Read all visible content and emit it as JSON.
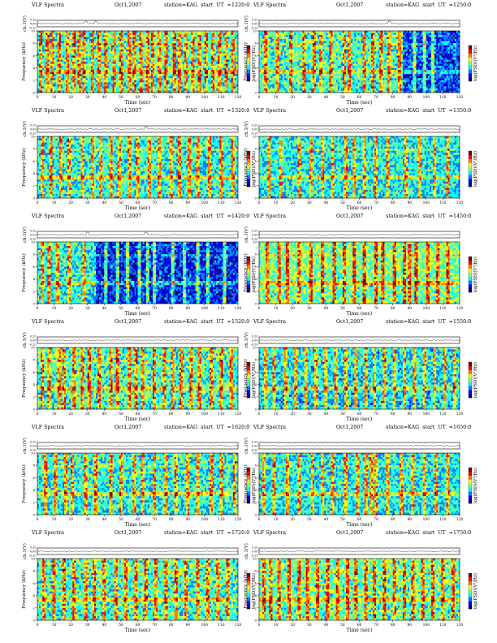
{
  "figure": {
    "panel_title_prefix": "VLF Spectra",
    "date": "Oct1,2007",
    "station": "station=KAG",
    "start_label": "start  UT  =",
    "ch_axis_label": "ch.1(V)",
    "spec_axis_label": "Frequency (kHz)",
    "colorbar_label": "log(PSD)(V²/Hz)",
    "x_axis_label": "Time (sec)",
    "ch_ticks": [
      "0.20",
      "0.00",
      "-0.20"
    ],
    "freq_ticks": [
      "0",
      "2",
      "4",
      "6",
      "8",
      "10"
    ],
    "time_ticks": [
      "0",
      "10",
      "20",
      "30",
      "40",
      "50",
      "60",
      "70",
      "80",
      "90",
      "100",
      "110",
      "120"
    ],
    "colors": {
      "colormap": [
        "#00007f",
        "#0000ff",
        "#0080ff",
        "#00ffff",
        "#80ff80",
        "#ffff00",
        "#ff8000",
        "#ff0000",
        "#7f0000"
      ]
    }
  },
  "chart_data": [
    {
      "type": "heatmap",
      "title": "VLF Spectra   Oct1,2007   station=KAG  start  UT  =1220:0",
      "start_ut": "1220:0",
      "x_unit": "sec",
      "xlim": [
        0,
        120
      ],
      "ylim_frequency_khz": [
        0,
        10
      ],
      "ch1_ylim_v": [
        -0.2,
        0.2
      ],
      "background_level": 0.45,
      "spikes_sec": [
        2,
        6,
        9,
        13,
        18,
        22,
        25,
        28,
        33,
        37,
        41,
        46,
        50,
        55,
        58,
        62,
        66,
        69,
        73,
        77,
        82,
        85,
        89,
        93,
        97,
        101,
        105,
        109,
        113,
        117
      ],
      "blue_quiet_intervals_sec": [],
      "ch1_spike_sec": [
        29,
        35
      ]
    },
    {
      "type": "heatmap",
      "title": "VLF Spectra   Oct1,2007   station=KAG  start  UT  =1250:0",
      "start_ut": "1250:0",
      "x_unit": "sec",
      "xlim": [
        0,
        120
      ],
      "ylim_frequency_khz": [
        0,
        10
      ],
      "ch1_ylim_v": [
        -0.2,
        0.2
      ],
      "background_level": 0.45,
      "spikes_sec": [
        4,
        11,
        19,
        27,
        33,
        37,
        43,
        51,
        54,
        63,
        68,
        73,
        78,
        84,
        93,
        99,
        104
      ],
      "blue_quiet_intervals_sec": [
        [
          86,
          120
        ]
      ],
      "ch1_spike_sec": [
        78
      ]
    },
    {
      "type": "heatmap",
      "title": "VLF Spectra   Oct1,2007   station=KAG  start  UT  =1320:0",
      "start_ut": "1320:0",
      "x_unit": "sec",
      "xlim": [
        0,
        120
      ],
      "ylim_frequency_khz": [
        0,
        10
      ],
      "ch1_ylim_v": [
        -0.2,
        0.2
      ],
      "background_level": 0.42,
      "spikes_sec": [
        3,
        8,
        14,
        19,
        27,
        33,
        38,
        44,
        49,
        55,
        60,
        67,
        73,
        80,
        85,
        91,
        96,
        103,
        110,
        117
      ],
      "blue_quiet_intervals_sec": [],
      "ch1_spike_sec": [
        65
      ]
    },
    {
      "type": "heatmap",
      "title": "VLF Spectra   Oct1,2007   station=KAG  start  UT  =1350:0",
      "start_ut": "1350:0",
      "x_unit": "sec",
      "xlim": [
        0,
        120
      ],
      "ylim_frequency_khz": [
        0,
        10
      ],
      "ch1_ylim_v": [
        -0.2,
        0.2
      ],
      "background_level": 0.4,
      "spikes_sec": [
        6,
        13,
        24,
        31,
        38,
        44,
        52,
        57,
        63,
        70,
        77,
        88,
        96,
        105,
        113
      ],
      "blue_quiet_intervals_sec": [],
      "ch1_spike_sec": []
    },
    {
      "type": "heatmap",
      "title": "VLF Spectra   Oct1,2007   station=KAG  start  UT  =1420:0",
      "start_ut": "1420:0",
      "x_unit": "sec",
      "xlim": [
        0,
        120
      ],
      "ylim_frequency_khz": [
        0,
        10
      ],
      "ch1_ylim_v": [
        -0.2,
        0.2
      ],
      "background_level": 0.42,
      "spikes_sec": [
        3,
        7,
        12,
        19,
        28,
        41,
        48,
        54,
        61,
        66,
        70,
        81,
        88,
        96,
        102,
        112
      ],
      "blue_quiet_intervals_sec": [
        [
          35,
          120
        ]
      ],
      "ch1_spike_sec": [
        30,
        65
      ]
    },
    {
      "type": "heatmap",
      "title": "VLF Spectra   Oct1,2007   station=KAG  start  UT  =1450:0",
      "start_ut": "1450:0",
      "x_unit": "sec",
      "xlim": [
        0,
        120
      ],
      "ylim_frequency_khz": [
        0,
        10
      ],
      "ch1_ylim_v": [
        -0.2,
        0.2
      ],
      "background_level": 0.5,
      "spikes_sec": [
        5,
        12,
        17,
        24,
        31,
        38,
        45,
        51,
        57,
        63,
        70,
        74,
        81,
        87,
        90,
        94,
        101,
        107,
        113
      ],
      "blue_quiet_intervals_sec": [],
      "ch1_spike_sec": []
    },
    {
      "type": "heatmap",
      "title": "VLF Spectra   Oct1,2007   station=KAG  start  UT  =1520:0",
      "start_ut": "1520:0",
      "x_unit": "sec",
      "xlim": [
        0,
        120
      ],
      "ylim_frequency_khz": [
        0,
        10
      ],
      "ch1_ylim_v": [
        -0.2,
        0.2
      ],
      "background_level": 0.45,
      "spikes_sec": [
        3,
        7,
        13,
        16,
        22,
        27,
        31,
        37,
        44,
        48,
        55,
        59,
        63,
        70,
        76,
        81,
        86,
        92,
        97,
        104,
        110,
        116
      ],
      "blue_quiet_intervals_sec": [],
      "ch1_spike_sec": []
    },
    {
      "type": "heatmap",
      "title": "VLF Spectra   Oct1,2007   station=KAG  start  UT  =1550:0",
      "start_ut": "1550:0",
      "x_unit": "sec",
      "xlim": [
        0,
        120
      ],
      "ylim_frequency_khz": [
        0,
        10
      ],
      "ch1_ylim_v": [
        -0.2,
        0.2
      ],
      "background_level": 0.38,
      "spikes_sec": [
        4,
        9,
        16,
        22,
        28,
        34,
        40,
        46,
        52,
        58,
        64,
        69,
        75,
        81,
        87,
        93,
        99,
        105,
        111,
        117
      ],
      "blue_quiet_intervals_sec": [],
      "ch1_spike_sec": []
    },
    {
      "type": "heatmap",
      "title": "VLF Spectra   Oct1,2007   station=KAG  start  UT  =1620:0",
      "start_ut": "1620:0",
      "x_unit": "sec",
      "xlim": [
        0,
        120
      ],
      "ylim_frequency_khz": [
        0,
        10
      ],
      "ch1_ylim_v": [
        -0.2,
        0.2
      ],
      "background_level": 0.42,
      "spikes_sec": [
        5,
        11,
        17,
        21,
        29,
        35,
        44,
        50,
        58,
        63,
        70,
        77,
        83,
        90,
        96,
        104,
        110,
        118
      ],
      "blue_quiet_intervals_sec": [],
      "ch1_spike_sec": []
    },
    {
      "type": "heatmap",
      "title": "VLF Spectra   Oct1,2007   station=KAG  start  UT  =1650:0",
      "start_ut": "1650:0",
      "x_unit": "sec",
      "xlim": [
        0,
        120
      ],
      "ylim_frequency_khz": [
        0,
        10
      ],
      "ch1_ylim_v": [
        -0.2,
        0.2
      ],
      "background_level": 0.4,
      "spikes_sec": [
        3,
        9,
        17,
        24,
        32,
        38,
        44,
        52,
        59,
        64,
        67,
        70,
        77,
        85,
        92,
        99,
        106,
        113
      ],
      "blue_quiet_intervals_sec": [],
      "ch1_spike_sec": []
    },
    {
      "type": "heatmap",
      "title": "VLF Spectra   Oct1,2007   station=KAG  start  UT  =1720:0",
      "start_ut": "1720:0",
      "x_unit": "sec",
      "xlim": [
        0,
        120
      ],
      "ylim_frequency_khz": [
        0,
        10
      ],
      "ch1_ylim_v": [
        -0.2,
        0.2
      ],
      "background_level": 0.45,
      "spikes_sec": [
        4,
        10,
        16,
        22,
        29,
        34,
        40,
        47,
        53,
        59,
        65,
        71,
        77,
        83,
        89,
        96,
        102,
        108,
        114
      ],
      "blue_quiet_intervals_sec": [],
      "ch1_spike_sec": []
    },
    {
      "type": "heatmap",
      "title": "VLF Spectra   Oct1,2007   station=KAG  start  UT  =1750:0",
      "start_ut": "1750:0",
      "x_unit": "sec",
      "xlim": [
        0,
        120
      ],
      "ylim_frequency_khz": [
        0,
        10
      ],
      "ch1_ylim_v": [
        -0.2,
        0.2
      ],
      "background_level": 0.48,
      "spikes_sec": [
        3,
        7,
        12,
        18,
        24,
        29,
        35,
        41,
        47,
        53,
        58,
        64,
        69,
        75,
        81,
        87,
        92,
        98,
        104,
        110,
        116
      ],
      "blue_quiet_intervals_sec": [],
      "ch1_spike_sec": []
    }
  ]
}
